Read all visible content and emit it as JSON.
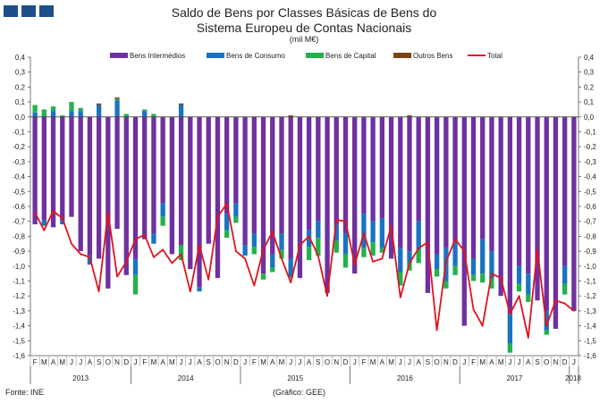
{
  "header": {
    "title_line1": "Saldo de Bens por Classes Básicas de Bens do",
    "title_line2": "Sistema Europeu de Contas Nacionais",
    "unit": "(mil M€)"
  },
  "footer": {
    "source": "Fonte: INE",
    "credit": "(Gráfico: GEE)"
  },
  "chart_data": {
    "type": "bar",
    "stacked": true,
    "title": "Saldo de Bens por Classes Básicas de Bens do Sistema Europeu de Contas Nacionais",
    "ylabel": "mil M€",
    "ylim": [
      -1.6,
      0.4
    ],
    "yticks": [
      "0,4",
      "0,3",
      "0,2",
      "0,1",
      "0,0",
      "-0,1",
      "-0,2",
      "-0,3",
      "-0,4",
      "-0,5",
      "-0,6",
      "-0,7",
      "-0,8",
      "-0,9",
      "-1,0",
      "-1,1",
      "-1,2",
      "-1,3",
      "-1,4",
      "-1,5",
      "-1,6"
    ],
    "legend_position": "top",
    "colors": {
      "intermedios": "#7030a0",
      "consumo": "#1a73c2",
      "capital": "#22b24c",
      "outros": "#7a4414",
      "total": "#e0141e"
    },
    "legend": [
      "Bens Intermédios",
      "Bens de Consumo",
      "Bens de Capital",
      "Outros Bens",
      "Total"
    ],
    "months": [
      "F",
      "M",
      "A",
      "M",
      "J",
      "J",
      "A",
      "S",
      "O",
      "N",
      "D",
      "J",
      "F",
      "M",
      "A",
      "M",
      "J",
      "J",
      "A",
      "S",
      "O",
      "N",
      "D",
      "J",
      "F",
      "M",
      "A",
      "M",
      "J",
      "J",
      "A",
      "S",
      "O",
      "N",
      "D",
      "J",
      "F",
      "M",
      "A",
      "M",
      "J",
      "J",
      "A",
      "S",
      "O",
      "N",
      "D",
      "J",
      "F",
      "M",
      "A",
      "M",
      "J",
      "J",
      "A",
      "S",
      "O",
      "N",
      "D",
      "J"
    ],
    "years": [
      {
        "label": "2013",
        "start": 0,
        "end": 10
      },
      {
        "label": "2014",
        "start": 11,
        "end": 22
      },
      {
        "label": "2015",
        "start": 23,
        "end": 34
      },
      {
        "label": "2016",
        "start": 35,
        "end": 46
      },
      {
        "label": "2017",
        "start": 47,
        "end": 58
      },
      {
        "label": "2018",
        "start": 59,
        "end": 59
      }
    ],
    "series": [
      {
        "name": "Bens Intermédios",
        "values": [
          -0.72,
          -0.69,
          -0.74,
          -0.69,
          -0.67,
          -0.9,
          -0.93,
          -0.95,
          -1.15,
          -0.75,
          -1.06,
          -0.95,
          -0.82,
          -0.78,
          -0.58,
          -0.92,
          -0.86,
          -1.02,
          -1.14,
          -0.85,
          -1.08,
          -0.65,
          -0.58,
          -0.86,
          -0.78,
          -1.05,
          -0.92,
          -0.78,
          -0.95,
          -1.08,
          -0.76,
          -0.7,
          -1.18,
          -0.72,
          -0.78,
          -1.05,
          -0.65,
          -0.7,
          -0.68,
          -0.95,
          -0.88,
          -0.9,
          -0.7,
          -1.18,
          -0.92,
          -0.88,
          -0.84,
          -1.4,
          -0.95,
          -0.82,
          -0.9,
          -1.2,
          -1.32,
          -1.0,
          -1.05,
          -1.23,
          -1.3,
          -1.42,
          -1.0,
          -1.3
        ]
      },
      {
        "name": "Bens de Consumo",
        "values": [
          0.03,
          -0.04,
          0.04,
          -0.03,
          0.04,
          0.04,
          -0.06,
          0.08,
          0.0,
          0.11,
          0.0,
          -0.11,
          0.04,
          -0.07,
          -0.09,
          0.0,
          0.08,
          0.0,
          -0.03,
          0.0,
          0.0,
          -0.11,
          -0.09,
          -0.07,
          -0.09,
          0.0,
          -0.09,
          -0.11,
          -0.12,
          0.0,
          -0.11,
          -0.11,
          0.0,
          -0.11,
          -0.14,
          0.0,
          -0.23,
          -0.14,
          -0.2,
          0.0,
          -0.16,
          -0.08,
          -0.19,
          0.0,
          -0.1,
          -0.22,
          -0.16,
          0.0,
          -0.11,
          -0.23,
          -0.18,
          0.0,
          -0.2,
          -0.12,
          -0.14,
          0.0,
          -0.13,
          0.0,
          -0.12,
          0.0
        ]
      },
      {
        "name": "Bens de Capital",
        "values": [
          0.05,
          0.05,
          0.03,
          0.01,
          0.06,
          0.02,
          0.0,
          0.0,
          0.0,
          0.01,
          0.02,
          -0.13,
          0.01,
          0.02,
          -0.06,
          0.0,
          -0.1,
          0.0,
          0.0,
          0.0,
          0.0,
          -0.05,
          -0.04,
          0.0,
          -0.05,
          -0.04,
          -0.03,
          -0.06,
          -0.01,
          0.0,
          -0.09,
          -0.12,
          0.0,
          -0.08,
          -0.09,
          0.0,
          -0.06,
          -0.09,
          -0.03,
          0.0,
          -0.09,
          -0.05,
          -0.09,
          0.0,
          -0.05,
          -0.05,
          -0.06,
          0.0,
          -0.04,
          -0.06,
          -0.07,
          0.0,
          -0.06,
          -0.05,
          -0.05,
          0.0,
          -0.03,
          0.0,
          -0.07,
          0.0
        ]
      },
      {
        "name": "Outros Bens",
        "values": [
          0.0,
          0.0,
          0.0,
          0.0,
          0.0,
          0.0,
          0.0,
          0.01,
          0.0,
          0.01,
          0.0,
          0.0,
          0.0,
          0.0,
          0.0,
          0.0,
          0.01,
          0.0,
          0.0,
          0.0,
          0.0,
          0.0,
          0.0,
          0.0,
          0.0,
          0.0,
          0.0,
          0.0,
          0.01,
          0.0,
          0.0,
          0.0,
          0.0,
          0.0,
          0.0,
          0.0,
          0.0,
          0.0,
          0.0,
          0.0,
          0.0,
          0.01,
          0.0,
          0.0,
          0.0,
          0.0,
          0.0,
          0.0,
          0.0,
          0.0,
          0.0,
          0.0,
          0.0,
          0.0,
          0.0,
          0.0,
          0.0,
          0.0,
          0.0,
          0.0
        ]
      },
      {
        "name": "Total",
        "values": [
          -0.64,
          -0.76,
          -0.63,
          -0.68,
          -0.85,
          -0.92,
          -0.94,
          -1.17,
          -0.64,
          -1.07,
          -0.97,
          -0.82,
          -0.79,
          -0.94,
          -0.89,
          -0.98,
          -0.92,
          -1.17,
          -0.86,
          -1.09,
          -0.67,
          -0.58,
          -0.9,
          -0.95,
          -1.13,
          -0.89,
          -0.77,
          -0.95,
          -1.11,
          -0.86,
          -0.8,
          -0.93,
          -1.2,
          -0.69,
          -0.7,
          -0.99,
          -0.78,
          -0.97,
          -0.95,
          -0.73,
          -1.21,
          -0.98,
          -0.88,
          -0.84,
          -1.43,
          -0.97,
          -0.82,
          -0.9,
          -1.29,
          -1.4,
          -1.05,
          -1.08,
          -1.32,
          -1.2,
          -1.48,
          -0.89,
          -1.4,
          -1.23,
          -1.25,
          -1.3
        ]
      }
    ]
  }
}
